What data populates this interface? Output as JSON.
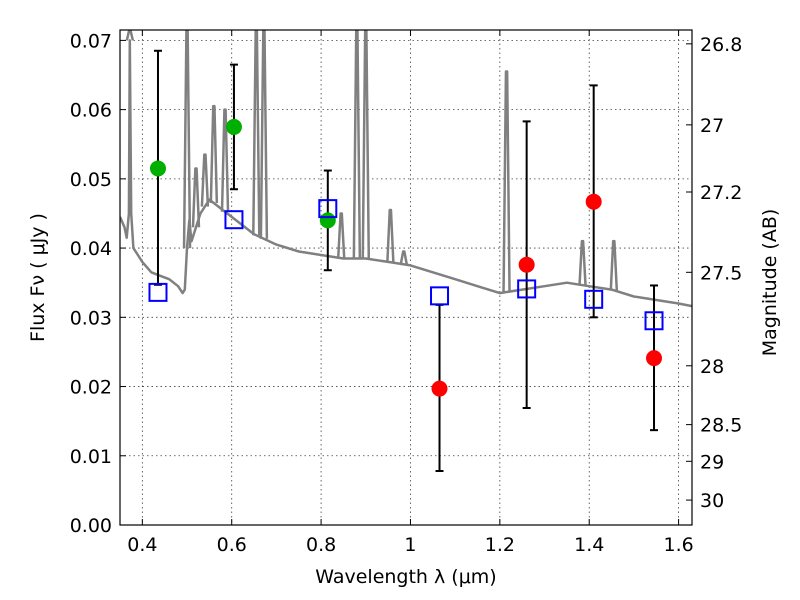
{
  "chart_data": {
    "type": "scatter",
    "title": "",
    "xlabel": "Wavelength  λ (μm)",
    "ylabel": "Flux  Fν  ( μJy )",
    "y2label": "Magnitude (AB)",
    "xlim": [
      0.35,
      1.63
    ],
    "ylim": [
      0.0,
      0.0715
    ],
    "grid": true,
    "x_ticks": [
      0.4,
      0.6,
      0.8,
      1.0,
      1.2,
      1.4,
      1.6
    ],
    "x_tick_labels": [
      "0.4",
      "0.6",
      "0.8",
      "1",
      "1.2",
      "1.4",
      "1.6"
    ],
    "y_ticks": [
      0.0,
      0.01,
      0.02,
      0.03,
      0.04,
      0.05,
      0.06,
      0.07
    ],
    "y_tick_labels": [
      "0.00",
      "0.01",
      "0.02",
      "0.03",
      "0.04",
      "0.05",
      "0.06",
      "0.07"
    ],
    "y2_ticks": [
      {
        "label": "26.8",
        "flux": 0.0695
      },
      {
        "label": "27",
        "flux": 0.0578
      },
      {
        "label": "27.2",
        "flux": 0.0481
      },
      {
        "label": "27.5",
        "flux": 0.0365
      },
      {
        "label": "28",
        "flux": 0.023
      },
      {
        "label": "28.5",
        "flux": 0.0145
      },
      {
        "label": "29",
        "flux": 0.0092
      },
      {
        "label": "30",
        "flux": 0.0036
      }
    ],
    "colors": {
      "model": "#808080",
      "green": "#00b000",
      "red": "#ff0000",
      "square": "#0000ff",
      "errorbar": "#000000"
    },
    "model_spectrum": {
      "x": [
        0.35,
        0.36,
        0.365,
        0.37,
        0.372,
        0.375,
        0.38,
        0.39,
        0.4,
        0.42,
        0.44,
        0.46,
        0.48,
        0.49,
        0.495,
        0.5,
        0.505,
        0.51,
        0.53,
        0.55,
        0.6,
        0.65,
        0.7,
        0.75,
        0.8,
        0.85,
        0.9,
        0.95,
        1.0,
        1.05,
        1.1,
        1.15,
        1.2,
        1.25,
        1.3,
        1.35,
        1.4,
        1.45,
        1.5,
        1.55,
        1.6,
        1.63
      ],
      "y": [
        0.0445,
        0.043,
        0.0415,
        0.045,
        0.07,
        0.045,
        0.04,
        0.039,
        0.038,
        0.0365,
        0.036,
        0.0355,
        0.0345,
        0.0335,
        0.034,
        0.04,
        0.044,
        0.041,
        0.045,
        0.047,
        0.0445,
        0.042,
        0.0405,
        0.0395,
        0.039,
        0.0385,
        0.0385,
        0.038,
        0.0375,
        0.0365,
        0.0355,
        0.0345,
        0.0335,
        0.034,
        0.0345,
        0.035,
        0.0345,
        0.034,
        0.033,
        0.0325,
        0.032,
        0.0316
      ]
    },
    "model_spikes": [
      {
        "x": 0.372,
        "peak": 0.0715
      },
      {
        "x": 0.5,
        "peak": 0.0715
      },
      {
        "x": 0.52,
        "peak": 0.0515
      },
      {
        "x": 0.54,
        "peak": 0.0535
      },
      {
        "x": 0.56,
        "peak": 0.0605
      },
      {
        "x": 0.585,
        "peak": 0.06
      },
      {
        "x": 0.655,
        "peak": 0.0715
      },
      {
        "x": 0.672,
        "peak": 0.0715
      },
      {
        "x": 0.845,
        "peak": 0.045
      },
      {
        "x": 0.88,
        "peak": 0.0715
      },
      {
        "x": 0.9,
        "peak": 0.0715
      },
      {
        "x": 0.955,
        "peak": 0.0455
      },
      {
        "x": 0.985,
        "peak": 0.0395
      },
      {
        "x": 1.215,
        "peak": 0.0655
      },
      {
        "x": 1.385,
        "peak": 0.041
      },
      {
        "x": 1.455,
        "peak": 0.041
      }
    ],
    "series": [
      {
        "marker": "circle",
        "color": "green",
        "points": [
          {
            "x": 0.435,
            "y": 0.0515,
            "err_low": 0.0347,
            "err_high": 0.0685
          },
          {
            "x": 0.605,
            "y": 0.0575,
            "err_low": 0.0485,
            "err_high": 0.0665
          },
          {
            "x": 0.815,
            "y": 0.044,
            "err_low": 0.0368,
            "err_high": 0.0512
          }
        ]
      },
      {
        "marker": "circle",
        "color": "red",
        "points": [
          {
            "x": 1.065,
            "y": 0.0197,
            "err_low": 0.0078,
            "err_high": 0.0318
          },
          {
            "x": 1.26,
            "y": 0.0376,
            "err_low": 0.0169,
            "err_high": 0.0583
          },
          {
            "x": 1.41,
            "y": 0.0467,
            "err_low": 0.03,
            "err_high": 0.0635
          },
          {
            "x": 1.545,
            "y": 0.0241,
            "err_low": 0.0137,
            "err_high": 0.0346
          }
        ]
      },
      {
        "marker": "square",
        "color": "square",
        "points": [
          {
            "x": 0.435,
            "y": 0.0336
          },
          {
            "x": 0.605,
            "y": 0.0441
          },
          {
            "x": 0.815,
            "y": 0.0457
          },
          {
            "x": 1.065,
            "y": 0.0331
          },
          {
            "x": 1.26,
            "y": 0.0341
          },
          {
            "x": 1.41,
            "y": 0.0326
          },
          {
            "x": 1.545,
            "y": 0.0295
          }
        ]
      }
    ]
  }
}
